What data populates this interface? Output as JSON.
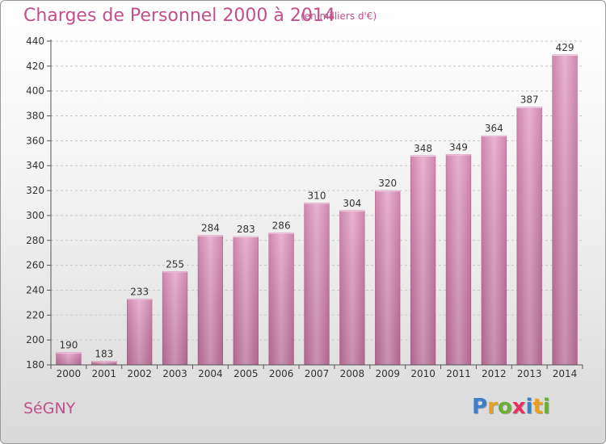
{
  "header": {
    "title": "Charges de Personnel 2000 à 2014",
    "subtitle": "(en milliers d'€)"
  },
  "footer": {
    "commune": "SéGNY",
    "logo_letters": [
      {
        "ch": "P",
        "color": "#3a7fc8"
      },
      {
        "ch": "r",
        "color": "#e8a020"
      },
      {
        "ch": "o",
        "color": "#6ab030"
      },
      {
        "ch": "x",
        "color": "#e83060"
      },
      {
        "ch": "i",
        "color": "#3a7fc8"
      },
      {
        "ch": "t",
        "color": "#e8a020"
      },
      {
        "ch": "i",
        "color": "#6ab030"
      }
    ]
  },
  "chart_data": {
    "type": "bar",
    "title": "Charges de Personnel 2000 à 2014",
    "subtitle": "(en milliers d'€)",
    "categories": [
      "2000",
      "2001",
      "2002",
      "2003",
      "2004",
      "2005",
      "2006",
      "2007",
      "2008",
      "2009",
      "2010",
      "2011",
      "2012",
      "2013",
      "2014"
    ],
    "values": [
      190,
      183,
      233,
      255,
      284,
      283,
      286,
      310,
      304,
      320,
      348,
      349,
      364,
      387,
      429
    ],
    "ylim": [
      180,
      440
    ],
    "yticks": [
      180,
      200,
      220,
      240,
      260,
      280,
      300,
      320,
      340,
      360,
      380,
      400,
      420,
      440
    ],
    "grid": true,
    "bar_color": "#d88ab8"
  }
}
